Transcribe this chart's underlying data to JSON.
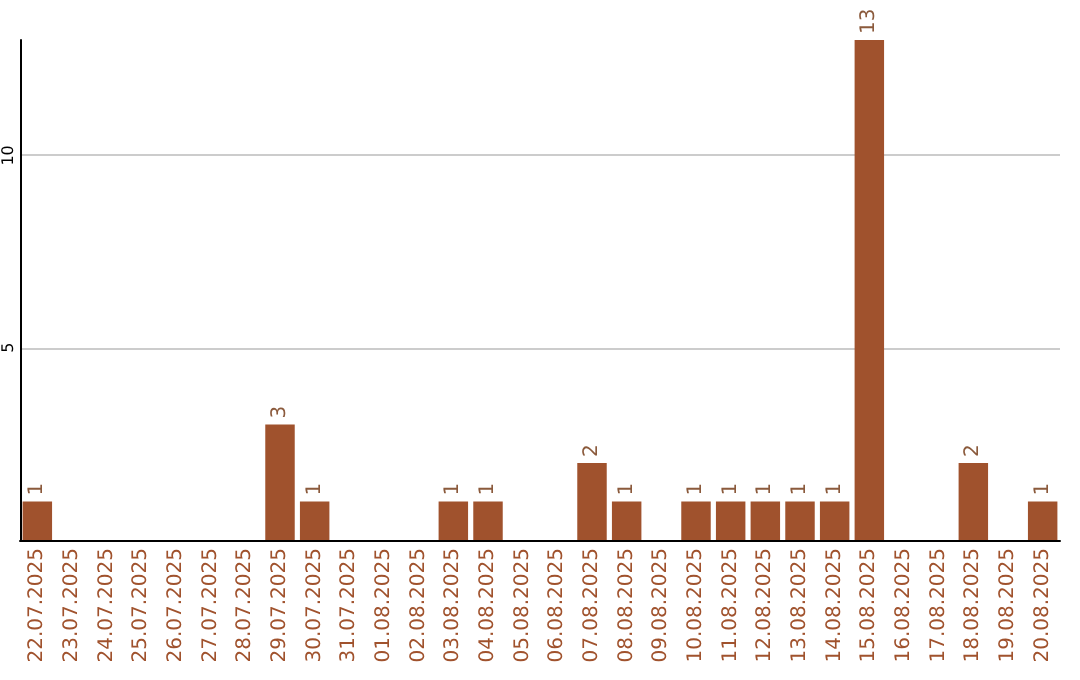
{
  "chart_data": {
    "type": "bar",
    "categories": [
      "22.07.2025",
      "23.07.2025",
      "24.07.2025",
      "25.07.2025",
      "26.07.2025",
      "27.07.2025",
      "28.07.2025",
      "29.07.2025",
      "30.07.2025",
      "31.07.2025",
      "01.08.2025",
      "02.08.2025",
      "03.08.2025",
      "04.08.2025",
      "05.08.2025",
      "06.08.2025",
      "07.08.2025",
      "08.08.2025",
      "09.08.2025",
      "10.08.2025",
      "11.08.2025",
      "12.08.2025",
      "13.08.2025",
      "14.08.2025",
      "15.08.2025",
      "16.08.2025",
      "17.08.2025",
      "18.08.2025",
      "19.08.2025",
      "20.08.2025"
    ],
    "values": [
      1,
      0,
      0,
      0,
      0,
      0,
      0,
      3,
      1,
      0,
      0,
      0,
      1,
      1,
      0,
      0,
      2,
      1,
      0,
      1,
      1,
      1,
      1,
      1,
      13,
      0,
      0,
      2,
      0,
      1
    ],
    "value_labels": [
      "1",
      null,
      null,
      null,
      null,
      null,
      null,
      "3",
      "1",
      null,
      null,
      null,
      "1",
      "1",
      null,
      null,
      "2",
      "1",
      null,
      "1",
      "1",
      "1",
      "1",
      "1",
      "13",
      null,
      null,
      "2",
      null,
      "1"
    ],
    "color": "#a0522d",
    "ylim": [
      0,
      13
    ],
    "yticks": [
      {
        "value": 0,
        "label": null
      },
      5,
      10
    ],
    "grid": "y"
  }
}
